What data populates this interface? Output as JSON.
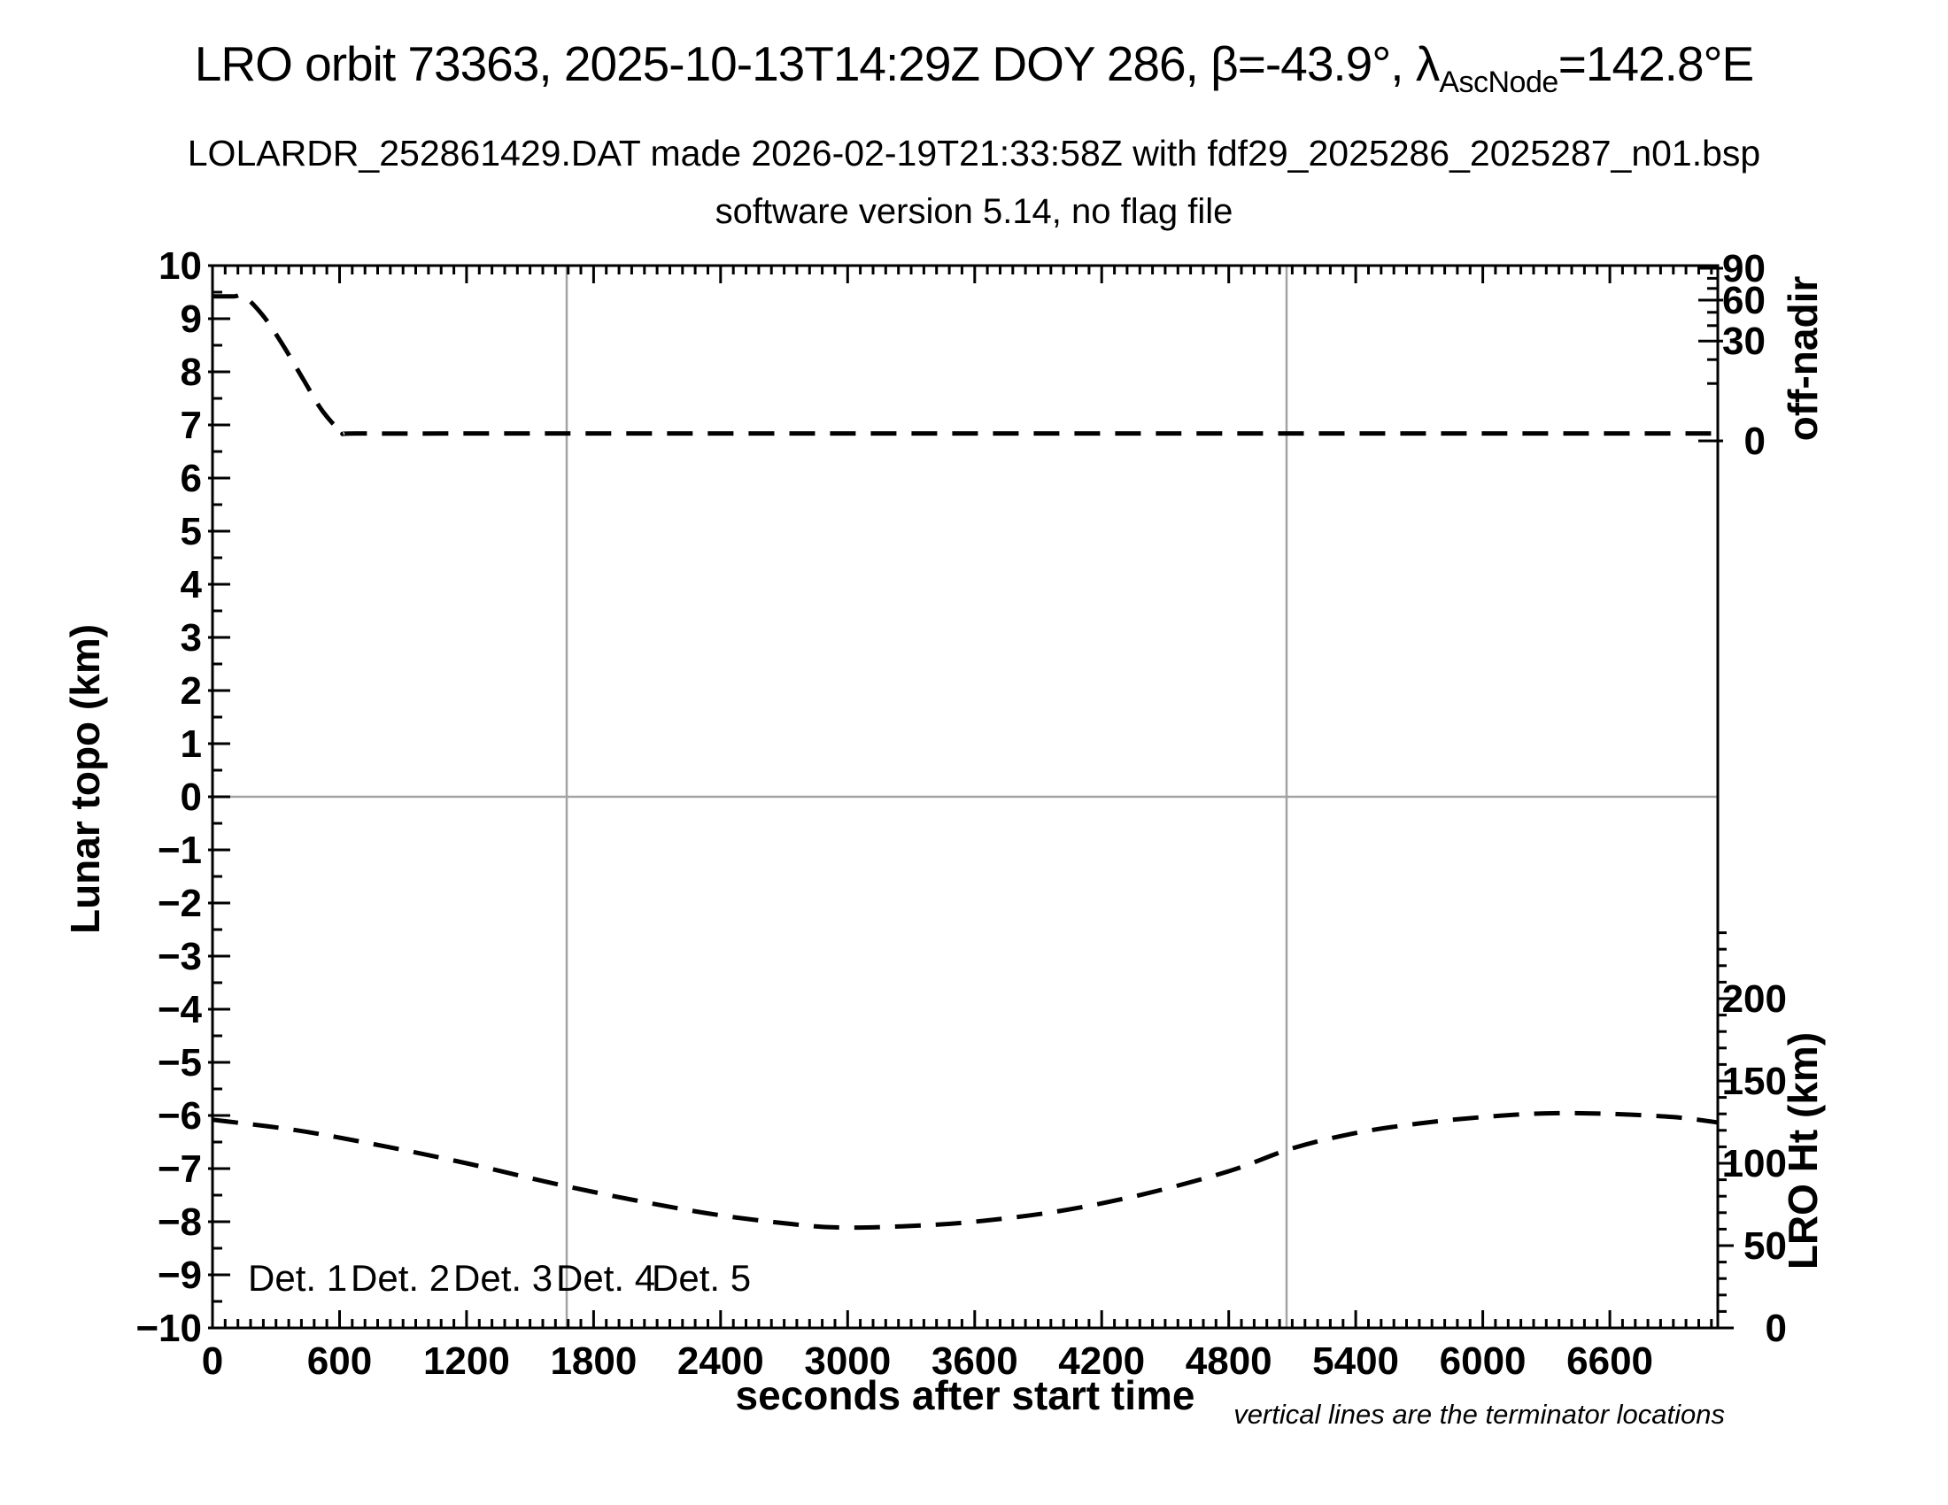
{
  "header": {
    "title_prefix": "LRO orbit 73363, 2025-10-13T14:29Z DOY 286, β=-43.9°, λ",
    "title_sub": "AscNode",
    "title_suffix": "=142.8°E",
    "subtitle_line1": "LOLARDR_252861429.DAT made 2026-02-19T21:33:58Z with fdf29_2025286_2025287_n01.bsp",
    "subtitle_line2": "software version 5.14, no flag file"
  },
  "footnote": "vertical lines are the terminator locations",
  "legend": {
    "items": [
      {
        "label": "Det. 1",
        "color": "#000000"
      },
      {
        "label": "Det. 2",
        "color": "#0000ff"
      },
      {
        "label": "Det. 3",
        "color": "#00dd00"
      },
      {
        "label": "Det. 4",
        "color": "#ffa500"
      },
      {
        "label": "Det. 5",
        "color": "#ff0000"
      }
    ]
  },
  "chart_data": {
    "type": "line",
    "xlabel": "seconds after start time",
    "ylabel_left": "Lunar topo (km)",
    "ylabel_right_top": "off-nadir",
    "ylabel_right_bottom": "LRO Ht (km)",
    "x_range": [
      0,
      7110
    ],
    "y_range_left": [
      -10,
      10
    ],
    "x_major_ticks": [
      0,
      600,
      1200,
      1800,
      2400,
      3000,
      3600,
      4200,
      4800,
      5400,
      6000,
      6600
    ],
    "x_tick_labels": [
      "0",
      "600",
      "1200",
      "1800",
      "2400",
      "3000",
      "3600",
      "4200",
      "4800",
      "5400",
      "6000",
      "6600"
    ],
    "x_minor_step": 60,
    "y_left_ticks": [
      10,
      9,
      8,
      7,
      6,
      5,
      4,
      3,
      2,
      1,
      0,
      -1,
      -2,
      -3,
      -4,
      -5,
      -6,
      -7,
      -8,
      -9,
      -10
    ],
    "y_left_tick_labels": [
      "10",
      "9",
      "8",
      "7",
      "6",
      "5",
      "4",
      "3",
      "2",
      "1",
      "0",
      "−1",
      "−2",
      "−3",
      "−4",
      "−5",
      "−6",
      "−7",
      "−8",
      "−9",
      "−10"
    ],
    "y_left_minor_step": 0.5,
    "right_top_axis": {
      "unit": "degrees off-nadir",
      "major_ticks": [
        {
          "label": "90",
          "left": 9.95
        },
        {
          "label": "60",
          "left": 9.35
        },
        {
          "label": "30",
          "left": 8.58
        },
        {
          "label": "0",
          "left": 6.7
        }
      ],
      "minor_ticks_left": [
        9.76,
        9.57,
        9.12,
        8.87,
        8.23,
        7.78
      ]
    },
    "right_bottom_axis": {
      "unit": "km",
      "major_ticks": [
        {
          "label": "200",
          "left": -3.8
        },
        {
          "label": "150",
          "left": -5.35
        },
        {
          "label": "100",
          "left": -6.9
        },
        {
          "label": "50",
          "left": -8.45
        },
        {
          "label": "0",
          "left": -10.0
        }
      ],
      "minor_km_step": 10,
      "minor_km_max": 240,
      "km_to_left": 0.031
    },
    "zero_line_left": 0,
    "terminator_lines_s": [
      1673,
      5073
    ],
    "grid_color": "#a3a3a3",
    "curve_color": "#000000",
    "series": [
      {
        "name": "spacecraft off-nadir angle (read on upper-right axis)",
        "style": "dashed",
        "x_s": [
          0,
          100,
          150,
          240,
          330,
          430,
          520,
          615,
          700,
          1500,
          3000,
          4500,
          6000,
          7108
        ],
        "y_left": [
          9.42,
          9.42,
          9.42,
          9.05,
          8.52,
          7.85,
          7.26,
          6.87,
          6.84,
          6.84,
          6.84,
          6.84,
          6.84,
          6.84
        ],
        "approx_off_nadir_deg": [
          63,
          63,
          63,
          48,
          28,
          11,
          3,
          0.3,
          0.2,
          0.2,
          0.2,
          0.2,
          0.2,
          0.2
        ]
      },
      {
        "name": "LRO height above surface (read on lower-right axis)",
        "style": "dashed",
        "x_s": [
          0,
          400,
          800,
          1200,
          1600,
          2000,
          2400,
          2800,
          3000,
          3300,
          3600,
          4000,
          4400,
          4800,
          5100,
          5400,
          5700,
          6000,
          6300,
          6600,
          6900,
          7108
        ],
        "y_left": [
          -6.08,
          -6.28,
          -6.57,
          -6.9,
          -7.27,
          -7.6,
          -7.88,
          -8.07,
          -8.11,
          -8.08,
          -8.0,
          -7.8,
          -7.48,
          -7.05,
          -6.62,
          -6.33,
          -6.15,
          -6.03,
          -5.96,
          -5.97,
          -6.03,
          -6.13
        ],
        "approx_km": [
          126,
          120,
          111,
          100,
          88,
          77,
          68,
          62,
          61,
          62,
          65,
          71,
          81,
          95,
          109,
          118,
          124,
          128,
          130,
          130,
          128,
          125
        ]
      }
    ]
  }
}
